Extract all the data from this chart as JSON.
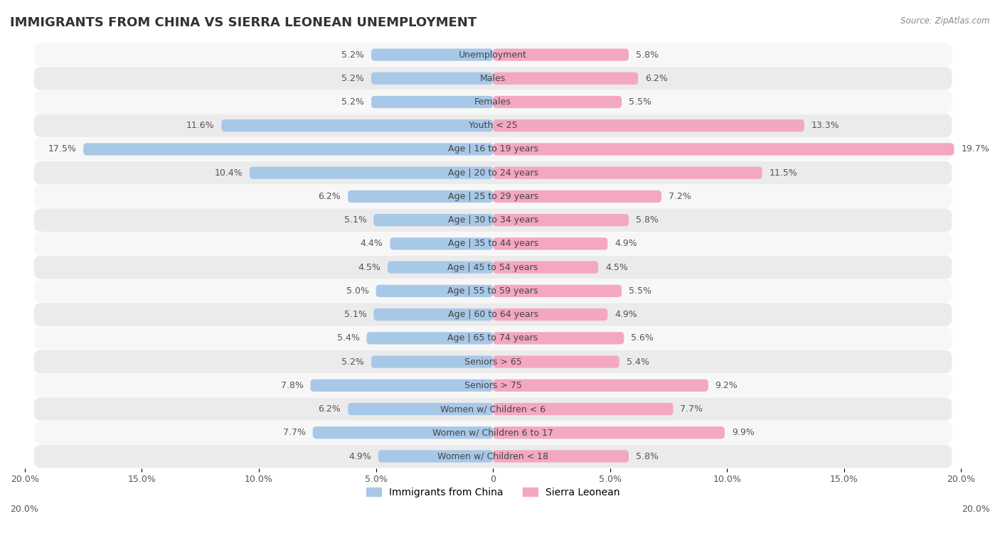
{
  "title": "IMMIGRANTS FROM CHINA VS SIERRA LEONEAN UNEMPLOYMENT",
  "source": "Source: ZipAtlas.com",
  "categories": [
    "Unemployment",
    "Males",
    "Females",
    "Youth < 25",
    "Age | 16 to 19 years",
    "Age | 20 to 24 years",
    "Age | 25 to 29 years",
    "Age | 30 to 34 years",
    "Age | 35 to 44 years",
    "Age | 45 to 54 years",
    "Age | 55 to 59 years",
    "Age | 60 to 64 years",
    "Age | 65 to 74 years",
    "Seniors > 65",
    "Seniors > 75",
    "Women w/ Children < 6",
    "Women w/ Children 6 to 17",
    "Women w/ Children < 18"
  ],
  "china_values": [
    5.2,
    5.2,
    5.2,
    11.6,
    17.5,
    10.4,
    6.2,
    5.1,
    4.4,
    4.5,
    5.0,
    5.1,
    5.4,
    5.2,
    7.8,
    6.2,
    7.7,
    4.9
  ],
  "sierra_values": [
    5.8,
    6.2,
    5.5,
    13.3,
    19.7,
    11.5,
    7.2,
    5.8,
    4.9,
    4.5,
    5.5,
    4.9,
    5.6,
    5.4,
    9.2,
    7.7,
    9.9,
    5.8
  ],
  "china_color": "#a8c8e8",
  "sierra_color": "#f4a8c0",
  "china_label": "Immigrants from China",
  "sierra_label": "Sierra Leonean",
  "axis_max": 20.0,
  "bg_color": "#ffffff",
  "row_color_light": "#ffffff",
  "row_color_dark": "#f0f0f0",
  "bar_height": 0.52,
  "label_fontsize": 9.0,
  "title_fontsize": 13,
  "tick_fontsize": 9,
  "value_fontsize": 9.0
}
